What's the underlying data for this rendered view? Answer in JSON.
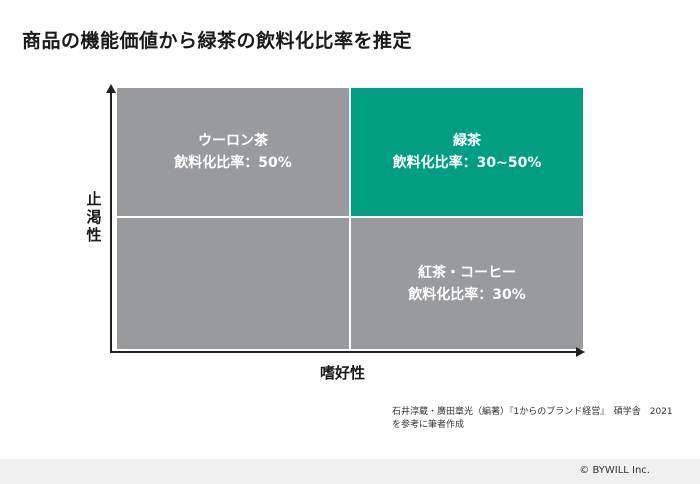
{
  "title": "商品の機能価値から緑茶の飲料化比率を推定",
  "colors": {
    "gray": "#999a9d",
    "green": "#009f84"
  },
  "quadrants": {
    "top_left": {
      "name": "ウーロン茶",
      "rate": "飲料化比率：50%"
    },
    "top_right": {
      "name": "緑茶",
      "rate": "飲料化比率：30~50%"
    },
    "bottom_left": {
      "name": "",
      "rate": ""
    },
    "bottom_right": {
      "name": "紅茶・コーヒー",
      "rate": "飲料化比率：30%"
    }
  },
  "axes": {
    "y_label": "止渇性",
    "x_label": "嗜好性"
  },
  "source": {
    "line1": "石井淳蔵・廣田章光（編著）『1からのブランド経営』　碩学舎　2021",
    "line2": "を参考に筆者作成"
  },
  "copyright": "© BYWILL Inc."
}
